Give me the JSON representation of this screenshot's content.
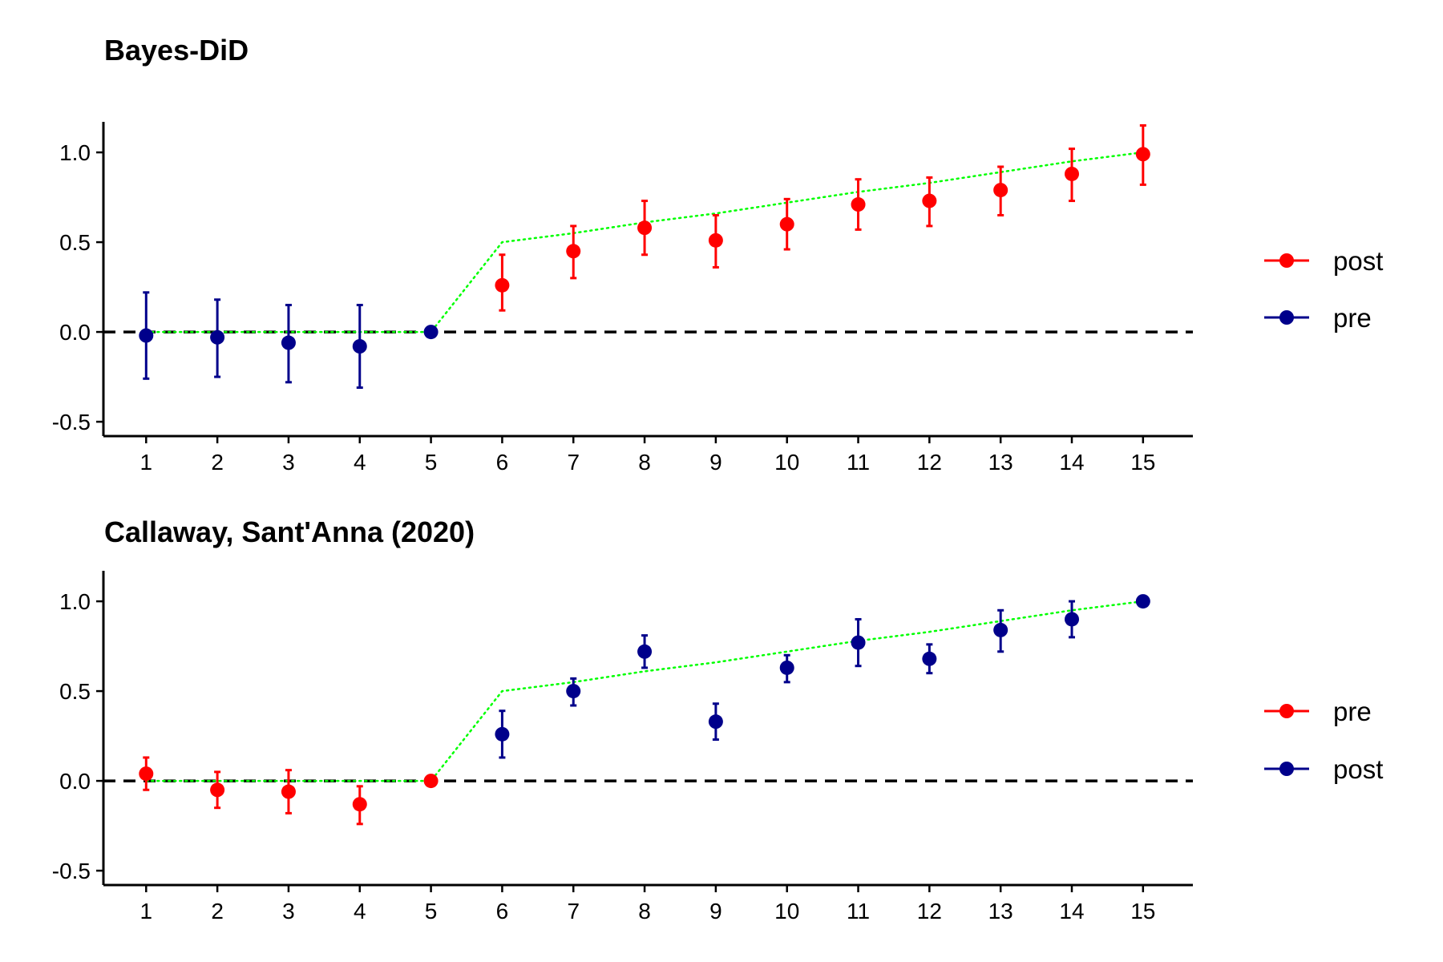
{
  "chart_data": [
    {
      "type": "scatter",
      "title": "Bayes-DiD",
      "xlabel": "",
      "ylabel": "",
      "x": [
        1,
        2,
        3,
        4,
        5,
        6,
        7,
        8,
        9,
        10,
        11,
        12,
        13,
        14,
        15
      ],
      "xticks": [
        "1",
        "2",
        "3",
        "4",
        "5",
        "6",
        "7",
        "8",
        "9",
        "10",
        "11",
        "12",
        "13",
        "14",
        "15"
      ],
      "yticks": [
        -0.5,
        0.0,
        0.5,
        1.0
      ],
      "ytick_labels": [
        "-0.5",
        "0.0",
        "0.5",
        "1.0"
      ],
      "ylim": [
        -0.58,
        1.17
      ],
      "xlim": [
        0.4,
        15.7
      ],
      "grid": false,
      "legend_position": "right",
      "reference_line": {
        "y": 0,
        "style": "dashed",
        "color": "#000000"
      },
      "true_effect_line": {
        "style": "dotted",
        "color": "#00ff00",
        "x": [
          1,
          2,
          3,
          4,
          5,
          6,
          7,
          8,
          9,
          10,
          11,
          12,
          13,
          14,
          15
        ],
        "y": [
          0,
          0,
          0,
          0,
          0,
          0.5,
          0.55,
          0.61,
          0.66,
          0.72,
          0.78,
          0.83,
          0.89,
          0.95,
          1.0
        ]
      },
      "series": [
        {
          "name": "post",
          "color": "#ff0000",
          "x": [
            6,
            7,
            8,
            9,
            10,
            11,
            12,
            13,
            14,
            15
          ],
          "y": [
            0.26,
            0.45,
            0.58,
            0.51,
            0.6,
            0.71,
            0.73,
            0.79,
            0.88,
            0.99
          ],
          "lower": [
            0.12,
            0.3,
            0.43,
            0.36,
            0.46,
            0.57,
            0.59,
            0.65,
            0.73,
            0.82
          ],
          "upper": [
            0.43,
            0.59,
            0.73,
            0.65,
            0.74,
            0.85,
            0.86,
            0.92,
            1.02,
            1.15
          ]
        },
        {
          "name": "pre",
          "color": "#00008b",
          "x": [
            1,
            2,
            3,
            4,
            5
          ],
          "y": [
            -0.02,
            -0.03,
            -0.06,
            -0.08,
            0.0
          ],
          "lower": [
            -0.26,
            -0.25,
            -0.28,
            -0.31,
            0.0
          ],
          "upper": [
            0.22,
            0.18,
            0.15,
            0.15,
            0.0
          ]
        }
      ],
      "legend": [
        {
          "label": "post",
          "color": "#ff0000"
        },
        {
          "label": "pre",
          "color": "#00008b"
        }
      ]
    },
    {
      "type": "scatter",
      "title": "Callaway, Sant'Anna (2020)",
      "xlabel": "",
      "ylabel": "",
      "x": [
        1,
        2,
        3,
        4,
        5,
        6,
        7,
        8,
        9,
        10,
        11,
        12,
        13,
        14,
        15
      ],
      "xticks": [
        "1",
        "2",
        "3",
        "4",
        "5",
        "6",
        "7",
        "8",
        "9",
        "10",
        "11",
        "12",
        "13",
        "14",
        "15"
      ],
      "yticks": [
        -0.5,
        0.0,
        0.5,
        1.0
      ],
      "ytick_labels": [
        "-0.5",
        "0.0",
        "0.5",
        "1.0"
      ],
      "ylim": [
        -0.58,
        1.17
      ],
      "xlim": [
        0.4,
        15.7
      ],
      "grid": false,
      "legend_position": "right",
      "reference_line": {
        "y": 0,
        "style": "dashed",
        "color": "#000000"
      },
      "true_effect_line": {
        "style": "dotted",
        "color": "#00ff00",
        "x": [
          1,
          2,
          3,
          4,
          5,
          6,
          7,
          8,
          9,
          10,
          11,
          12,
          13,
          14,
          15
        ],
        "y": [
          0,
          0,
          0,
          0,
          0,
          0.5,
          0.55,
          0.61,
          0.66,
          0.72,
          0.78,
          0.83,
          0.89,
          0.95,
          1.0
        ]
      },
      "series": [
        {
          "name": "pre",
          "color": "#ff0000",
          "x": [
            1,
            2,
            3,
            4,
            5
          ],
          "y": [
            0.04,
            -0.05,
            -0.06,
            -0.13,
            0.0
          ],
          "lower": [
            -0.05,
            -0.15,
            -0.18,
            -0.24,
            0.0
          ],
          "upper": [
            0.13,
            0.05,
            0.06,
            -0.03,
            0.0
          ]
        },
        {
          "name": "post",
          "color": "#00008b",
          "x": [
            6,
            7,
            8,
            9,
            10,
            11,
            12,
            13,
            14,
            15
          ],
          "y": [
            0.26,
            0.5,
            0.72,
            0.33,
            0.63,
            0.77,
            0.68,
            0.84,
            0.9,
            1.0
          ],
          "lower": [
            0.13,
            0.42,
            0.63,
            0.23,
            0.55,
            0.64,
            0.6,
            0.72,
            0.8,
            1.0
          ],
          "upper": [
            0.39,
            0.57,
            0.81,
            0.43,
            0.7,
            0.9,
            0.76,
            0.95,
            1.0,
            1.0
          ]
        }
      ],
      "legend": [
        {
          "label": "pre",
          "color": "#ff0000"
        },
        {
          "label": "post",
          "color": "#00008b"
        }
      ]
    }
  ]
}
